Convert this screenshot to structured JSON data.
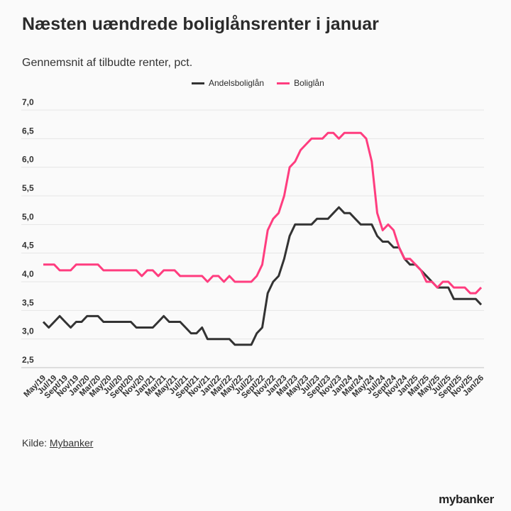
{
  "title": "Næsten uændrede boliglånsrenter i januar",
  "subtitle": "Gennemsnit af tilbudte renter, pct.",
  "source": {
    "label": "Kilde:",
    "link": "Mybanker"
  },
  "logo": "mybanker",
  "chart_data": {
    "type": "line",
    "title": "Næsten uændrede boliglånsrenter i januar",
    "xlabel": "",
    "ylabel": "",
    "ylim": [
      2.5,
      7.0
    ],
    "yticks": [
      "2,5",
      "3,0",
      "3,5",
      "4,0",
      "4,5",
      "5,0",
      "5,5",
      "6,0",
      "6,5",
      "7,0"
    ],
    "ytick_values": [
      2.5,
      3.0,
      3.5,
      4.0,
      4.5,
      5.0,
      5.5,
      6.0,
      6.5,
      7.0
    ],
    "grid": true,
    "legend_position": "top-center",
    "xtick_labels": [
      "May/19",
      "Jul/19",
      "Sept/19",
      "Nov/19",
      "Jan/20",
      "Mar/20",
      "May/20",
      "Jul/20",
      "Sept/20",
      "Nov/20",
      "Jan/21",
      "Mar/21",
      "May/21",
      "Jul/21",
      "Sept/21",
      "Nov/21",
      "Jan/22",
      "Mar/22",
      "May/22",
      "Jul/22",
      "Sept/22",
      "Nov/22",
      "Jan/23",
      "Mar/23",
      "May/23",
      "Jul/23",
      "Sept/23",
      "Nov/23",
      "Jan/24",
      "Mar/24",
      "May/24",
      "Jul/24",
      "Sept/24",
      "Nov/24",
      "Jan/25",
      "Mar/25",
      "May/25",
      "Jul/25",
      "Sept/25",
      "Nov/25",
      "Jan/26"
    ],
    "x_note": "monthly points May/19 to Jan/26",
    "series": [
      {
        "name": "Andelsboliglån",
        "color": "#333333",
        "values": [
          3.3,
          3.2,
          3.3,
          3.4,
          3.3,
          3.2,
          3.3,
          3.3,
          3.4,
          3.4,
          3.4,
          3.3,
          3.3,
          3.3,
          3.3,
          3.3,
          3.3,
          3.2,
          3.2,
          3.2,
          3.2,
          3.3,
          3.4,
          3.3,
          3.3,
          3.3,
          3.2,
          3.1,
          3.1,
          3.2,
          3.0,
          3.0,
          3.0,
          3.0,
          3.0,
          2.9,
          2.9,
          2.9,
          2.9,
          3.1,
          3.2,
          3.8,
          4.0,
          4.1,
          4.4,
          4.8,
          5.0,
          5.0,
          5.0,
          5.0,
          5.1,
          5.1,
          5.1,
          5.2,
          5.3,
          5.2,
          5.2,
          5.1,
          5.0,
          5.0,
          5.0,
          4.8,
          4.7,
          4.7,
          4.6,
          4.6,
          4.4,
          4.3,
          4.3,
          4.2,
          4.1,
          4.0,
          3.9,
          3.9,
          3.9,
          3.7,
          3.7,
          3.7,
          3.7,
          3.7,
          3.6
        ]
      },
      {
        "name": "Boliglån",
        "color": "#ff3d7f",
        "values": [
          4.3,
          4.3,
          4.3,
          4.2,
          4.2,
          4.2,
          4.3,
          4.3,
          4.3,
          4.3,
          4.3,
          4.2,
          4.2,
          4.2,
          4.2,
          4.2,
          4.2,
          4.2,
          4.1,
          4.2,
          4.2,
          4.1,
          4.2,
          4.2,
          4.2,
          4.1,
          4.1,
          4.1,
          4.1,
          4.1,
          4.0,
          4.1,
          4.1,
          4.0,
          4.1,
          4.0,
          4.0,
          4.0,
          4.0,
          4.1,
          4.3,
          4.9,
          5.1,
          5.2,
          5.5,
          6.0,
          6.1,
          6.3,
          6.4,
          6.5,
          6.5,
          6.5,
          6.6,
          6.6,
          6.5,
          6.6,
          6.6,
          6.6,
          6.6,
          6.5,
          6.1,
          5.2,
          4.9,
          5.0,
          4.9,
          4.6,
          4.4,
          4.4,
          4.3,
          4.2,
          4.0,
          4.0,
          3.9,
          4.0,
          4.0,
          3.9,
          3.9,
          3.9,
          3.8,
          3.8,
          3.9
        ]
      }
    ]
  }
}
